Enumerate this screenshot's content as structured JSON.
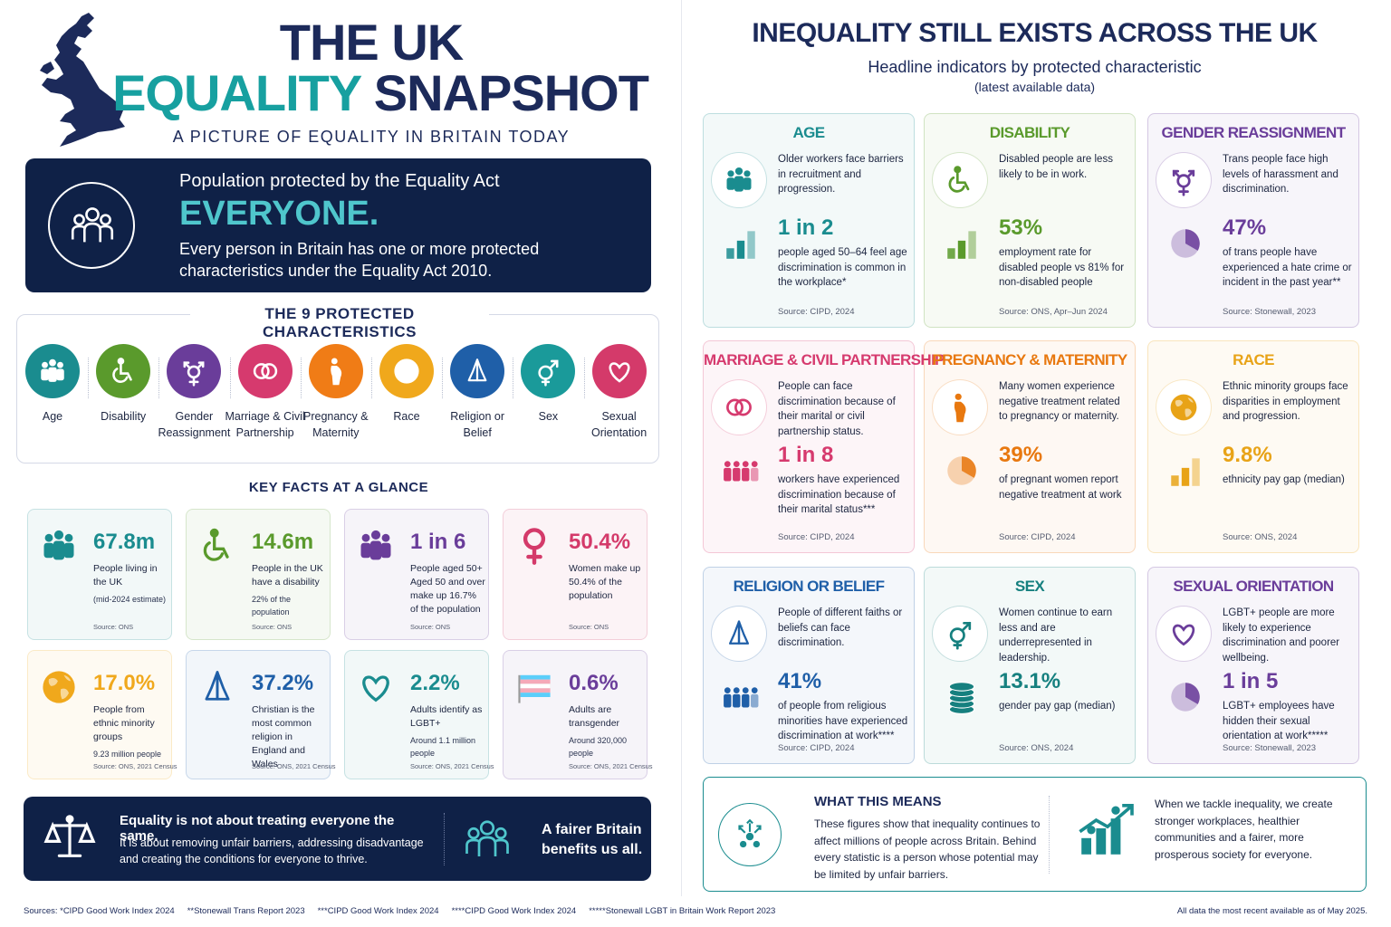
{
  "header": {
    "title_line1": "THE UK",
    "title_accent": "EQUALITY",
    "title_rest": "SNAPSHOT",
    "subtitle": "A PICTURE OF EQUALITY IN BRITAIN TODAY"
  },
  "everyone": {
    "heading": "Population protected by the Equality Act",
    "headline": "EVERYONE.",
    "text": "Every person in Britain has one or more protected characteristics under the Equality Act 2010."
  },
  "characteristics": {
    "title": "THE 9 PROTECTED CHARACTERISTICS",
    "items": [
      {
        "label": "Age",
        "color": "#1a8c8f",
        "icon": "people"
      },
      {
        "label": "Disability",
        "color": "#5a9a2c",
        "icon": "wheelchair"
      },
      {
        "label": "Gender Reassignment",
        "color": "#6a3d9a",
        "icon": "trans"
      },
      {
        "label": "Marriage & Civil Partnership",
        "color": "#d63a6e",
        "icon": "rings"
      },
      {
        "label": "Pregnancy & Maternity",
        "color": "#f07c16",
        "icon": "pregnant"
      },
      {
        "label": "Race",
        "color": "#f0a81c",
        "icon": "globe"
      },
      {
        "label": "Religion or Belief",
        "color": "#1f5fa8",
        "icon": "pray"
      },
      {
        "label": "Sex",
        "color": "#1a9a9a",
        "icon": "sex"
      },
      {
        "label": "Sexual Orientation",
        "color": "#d43a6a",
        "icon": "heart"
      }
    ]
  },
  "key_facts": {
    "title": "KEY FACTS AT A GLANCE",
    "cards": [
      {
        "value": "67.8m",
        "text": "People living in the UK",
        "note": "(mid-2024 estimate)",
        "source": "Source: ONS",
        "color": "#1a8c8f",
        "icon": "people"
      },
      {
        "value": "14.6m",
        "text": "People in the UK have a disability",
        "note": "22% of the population",
        "source": "Source: ONS",
        "color": "#5a9a2c",
        "icon": "wheelchair"
      },
      {
        "value": "1 in 6",
        "text": "People aged 50+ Aged 50 and over make up 16.7% of the population",
        "source": "Source: ONS",
        "color": "#6a3d9a",
        "icon": "people"
      },
      {
        "value": "50.4%",
        "text": "Women make up 50.4% of the population",
        "source": "Source: ONS",
        "color": "#d43a6a",
        "icon": "venus"
      },
      {
        "value": "17.0%",
        "text": "People from ethnic minority groups",
        "note": "9.23 million people",
        "source": "Source: ONS, 2021 Census",
        "color": "#f0a81c",
        "icon": "globe"
      },
      {
        "value": "37.2%",
        "text": "Christian is the most common religion in England and Wales",
        "source": "Source: ONS, 2021 Census",
        "color": "#1f5fa8",
        "icon": "pray"
      },
      {
        "value": "2.2%",
        "text": "Adults identify as LGBT+",
        "note": "Around 1.1 million people",
        "source": "Source: ONS, 2021 Census",
        "color": "#1a8c8f",
        "icon": "heart"
      },
      {
        "value": "0.6%",
        "text": "Adults are transgender",
        "note": "Around 320,000 people",
        "source": "Source: ONS, 2021 Census",
        "color": "#6a3d9a",
        "icon": "flag"
      }
    ]
  },
  "closing": {
    "heading": "Equality is not about treating everyone the same.",
    "text": "It is about removing unfair barriers, addressing disadvantage and creating the conditions for everyone to thrive.",
    "slogan": "A fairer Britain benefits us all."
  },
  "inequality": {
    "title": "INEQUALITY STILL EXISTS ACROSS THE UK",
    "subtitle": "Headline indicators by protected characteristic",
    "note": "(latest available data)",
    "panels": [
      {
        "title": "AGE",
        "description": "Older workers face barriers in recruitment and progression.",
        "stat": "1 in 2",
        "stat_text": "people aged 50–64 feel age discrimination is common in the workplace*",
        "source": "Source: CIPD, 2024",
        "color": "#1a8c8f",
        "icon": "people",
        "chart": "bars"
      },
      {
        "title": "DISABILITY",
        "description": "Disabled people are less likely to be in work.",
        "stat": "53%",
        "stat_text": "employment rate for disabled people vs 81% for non-disabled people",
        "source": "Source: ONS, Apr–Jun 2024",
        "color": "#5a9a2c",
        "icon": "wheelchair",
        "chart": "bars"
      },
      {
        "title": "GENDER REASSIGNMENT",
        "description": "Trans people face high levels of harassment and discrimination.",
        "stat": "47%",
        "stat_text": "of trans people have experienced a hate crime or incident in the past year**",
        "source": "Source: Stonewall, 2023",
        "color": "#6a3d9a",
        "icon": "trans",
        "chart": "pie"
      },
      {
        "title": "MARRIAGE & CIVIL PARTNERSHIP",
        "description": "People can face discrimination because of their marital or civil partnership status.",
        "stat": "1 in 8",
        "stat_text": "workers have experienced discrimination because of their marital status***",
        "source": "Source: CIPD, 2024",
        "color": "#d63a6e",
        "icon": "rings",
        "chart": "row"
      },
      {
        "title": "PREGNANCY & MATERNITY",
        "description": "Many women experience negative treatment related to pregnancy or maternity.",
        "stat": "39%",
        "stat_text": "of pregnant women report negative treatment at work",
        "source": "Source: CIPD, 2024",
        "color": "#e8780f",
        "icon": "pregnant",
        "chart": "pie"
      },
      {
        "title": "RACE",
        "description": "Ethnic minority groups face disparities in employment and progression.",
        "stat": "9.8%",
        "stat_text": "ethnicity pay gap (median)",
        "source": "Source: ONS, 2024",
        "color": "#e8a317",
        "icon": "globe",
        "chart": "bars"
      },
      {
        "title": "RELIGION OR BELIEF",
        "description": "People of different faiths or beliefs can face discrimination.",
        "stat": "41%",
        "stat_text": "of people from religious minorities have experienced discrimination at work****",
        "source": "Source: CIPD, 2024",
        "color": "#1f5fa8",
        "icon": "pray",
        "chart": "row"
      },
      {
        "title": "SEX",
        "description": "Women continue to earn less and are underrepresented in leadership.",
        "stat": "13.1%",
        "stat_text": "gender pay gap (median)",
        "source": "Source: ONS, 2024",
        "color": "#16807f",
        "icon": "sex",
        "chart": "coins"
      },
      {
        "title": "SEXUAL ORIENTATION",
        "description": "LGBT+ people are more likely to experience discrimination and poorer wellbeing.",
        "stat": "1 in 5",
        "stat_text": "LGBT+ employees have hidden their sexual orientation at work*****",
        "source": "Source: Stonewall, 2023",
        "color": "#6a3d9a",
        "icon": "heart",
        "chart": "pie"
      }
    ]
  },
  "meaning": {
    "title": "WHAT THIS MEANS",
    "text": "These figures show that inequality continues to affect millions of people across Britain. Behind every statistic is a person whose potential may be limited by unfair barriers.",
    "outcome": "When we tackle inequality, we create stronger workplaces, healthier communities and a fairer, more prosperous society for everyone."
  },
  "footer": {
    "sources": [
      "Sources: *CIPD Good Work Index 2024",
      "**Stonewall Trans Report 2023",
      "***CIPD Good Work Index 2024",
      "****CIPD Good Work Index 2024",
      "*****Stonewall LGBT in Britain Work Report 2023"
    ],
    "note": "All data the most recent available as of May 2025."
  }
}
